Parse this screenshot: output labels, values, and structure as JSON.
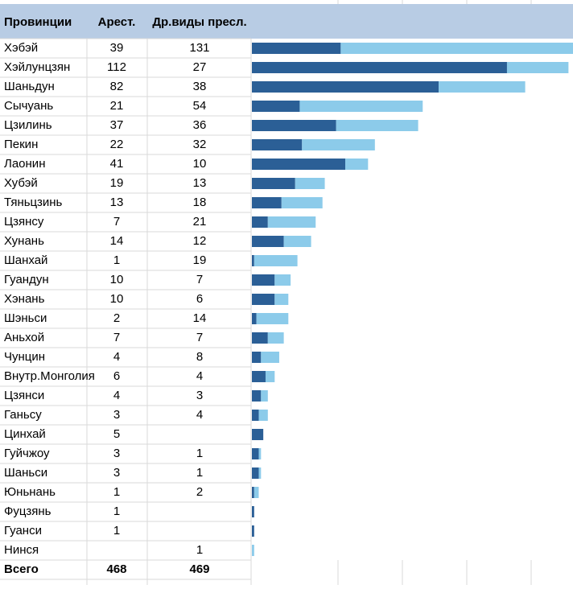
{
  "table": {
    "headers": [
      "Провинции",
      "Арест.",
      "Др.виды пресл."
    ],
    "rows": [
      [
        "Хэбэй",
        39,
        131
      ],
      [
        "Хэйлунцзян",
        112,
        27
      ],
      [
        "Шаньдун",
        82,
        38
      ],
      [
        "Сычуань",
        21,
        54
      ],
      [
        "Цзилинь",
        37,
        36
      ],
      [
        "Пекин",
        22,
        32
      ],
      [
        "Лаонин",
        41,
        10
      ],
      [
        "Хубэй",
        19,
        13
      ],
      [
        "Тяньцзинь",
        13,
        18
      ],
      [
        "Цзянсу",
        7,
        21
      ],
      [
        "Хунань",
        14,
        12
      ],
      [
        "Шанхай",
        1,
        19
      ],
      [
        "Гуандун",
        10,
        7
      ],
      [
        "Хэнань",
        10,
        6
      ],
      [
        "Шэньси",
        2,
        14
      ],
      [
        "Аньхой",
        7,
        7
      ],
      [
        "Чунцин",
        4,
        8
      ],
      [
        "Внутр.Монголия",
        6,
        4
      ],
      [
        "Цзянси",
        4,
        3
      ],
      [
        "Ганьсу",
        3,
        4
      ],
      [
        "Цинхай",
        5,
        null
      ],
      [
        "Гуйчжоу",
        3,
        1
      ],
      [
        "Шаньси",
        3,
        1
      ],
      [
        "Юньнань",
        1,
        2
      ],
      [
        "Фуцзянь",
        1,
        null
      ],
      [
        "Гуанси",
        1,
        null
      ],
      [
        "Нинся",
        null,
        1
      ]
    ],
    "total": [
      "Всего",
      468,
      469
    ],
    "colors": [
      "#2b5f96",
      "#8ccbea"
    ]
  }
}
